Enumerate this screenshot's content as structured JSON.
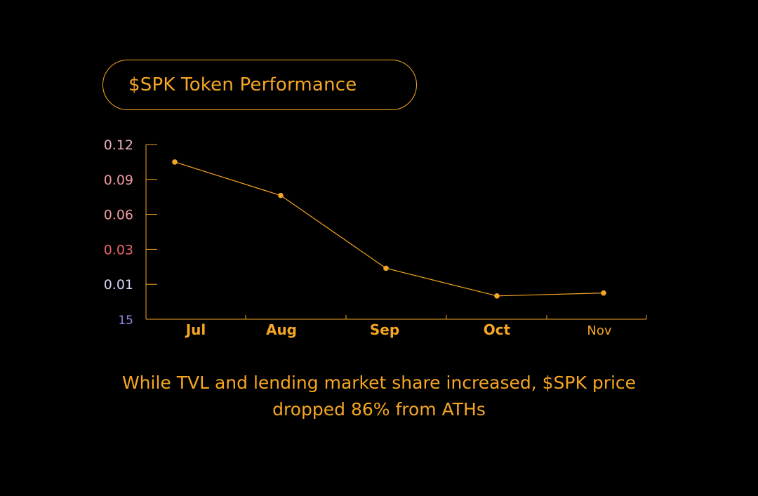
{
  "title": "$SPK Token Performance",
  "caption": {
    "line1": "While TVL and lending market share increased, $SPK price",
    "line2": "dropped 86% from ATHs"
  },
  "colors": {
    "background": "#000000",
    "accent": "#f5a623",
    "tick_colors": [
      "#9a83e8",
      "#d8d0f5",
      "#e8646a",
      "#ee9a9e",
      "#ee9a9e",
      "#f0b2bc"
    ]
  },
  "chart_data": {
    "type": "line",
    "title": "$SPK Token Performance",
    "xlabel": "",
    "ylabel": "",
    "categories": [
      "Jul",
      "Aug",
      "Sep",
      "Oct",
      "Nov"
    ],
    "y_tick_labels": [
      "15",
      "0.01",
      "0.03",
      "0.06",
      "0.09",
      "0.12"
    ],
    "ylim": [
      0,
      0.12
    ],
    "grid": false,
    "series": [
      {
        "values": [
          0.108,
          0.085,
          0.035,
          0.016,
          0.018
        ]
      }
    ]
  }
}
